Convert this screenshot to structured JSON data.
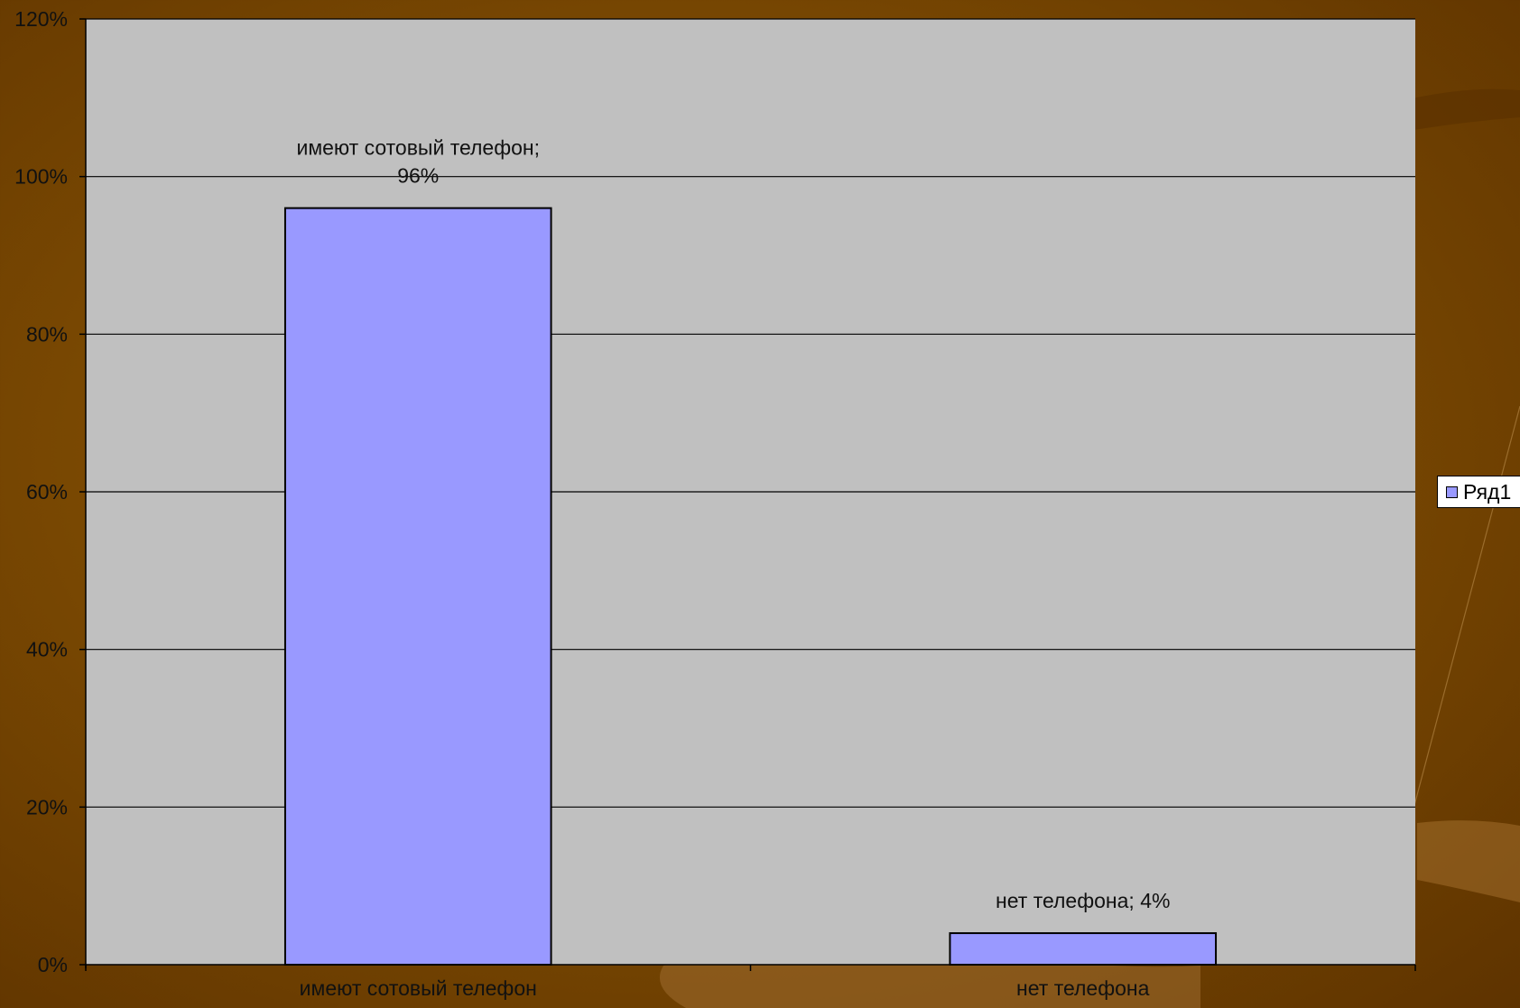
{
  "chart_data": {
    "type": "bar",
    "categories": [
      "имеют сотовый телефон",
      "нет телефона"
    ],
    "series": [
      {
        "name": "Ряд1",
        "values": [
          96,
          4
        ]
      }
    ],
    "data_labels": [
      [
        "имеют сотовый телефон;",
        "96%"
      ],
      [
        "нет телефона; 4%"
      ]
    ],
    "y_ticks": [
      "0%",
      "20%",
      "40%",
      "60%",
      "80%",
      "100%",
      "120%"
    ],
    "ylim": [
      0,
      120
    ],
    "y_unit": "%",
    "grid": true,
    "legend_position": "right",
    "title": "",
    "xlabel": "",
    "ylabel": "",
    "colors": {
      "bar": "#9999ff",
      "plot_area": "#c0c0c0",
      "gridline": "#000000",
      "background": "#7d4b02"
    }
  }
}
